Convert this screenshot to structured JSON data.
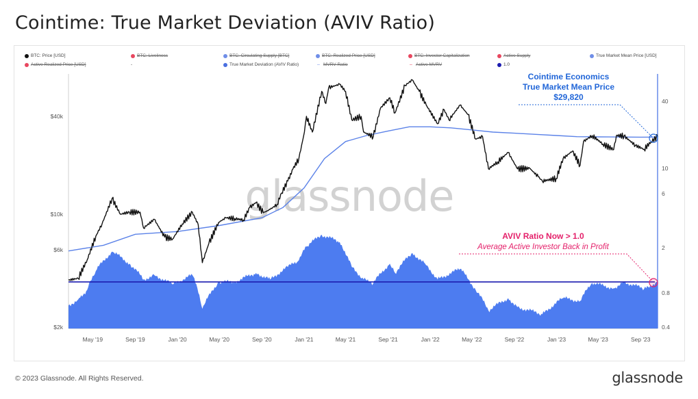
{
  "title": "Cointime: True Market Deviation (AVIV Ratio)",
  "legend": [
    {
      "label": "BTC: Price [USD]",
      "color": "#111111",
      "struck": false,
      "marker": "dot"
    },
    {
      "label": "BTC: Liveliness",
      "color": "#e8475f",
      "struck": true,
      "marker": "dot"
    },
    {
      "label": "BTC: Circulating Supply [BTC]",
      "color": "#6f8ee8",
      "struck": true,
      "marker": "dot"
    },
    {
      "label": "BTC: Realized Price [USD]",
      "color": "#6f8ee8",
      "struck": true,
      "marker": "dot"
    },
    {
      "label": "BTC: Investor Capitalization",
      "color": "#e8475f",
      "struck": true,
      "marker": "dot"
    },
    {
      "label": "Active Supply",
      "color": "#e8475f",
      "struck": true,
      "marker": "dot"
    },
    {
      "label": "True Market Mean Price [USD]",
      "color": "#6f8ee8",
      "struck": false,
      "marker": "dot"
    },
    {
      "label": "Active Realized Price [USD]",
      "color": "#e8475f",
      "struck": true,
      "marker": "dot"
    },
    {
      "label": "-",
      "color": "#888888",
      "struck": false,
      "marker": "none"
    },
    {
      "label": "True Market Deviation (AVIV Ratio)",
      "color": "#4a6fe0",
      "struck": false,
      "marker": "dot"
    },
    {
      "label": "MVRV Ratio",
      "color": "#6f8ee8",
      "struck": true,
      "marker": "dash"
    },
    {
      "label": "Active MVRV",
      "color": "#e8475f",
      "struck": true,
      "marker": "dash"
    },
    {
      "label": "1.0",
      "color": "#1c1cb0",
      "struck": false,
      "marker": "dot"
    }
  ],
  "watermark": "glassnode",
  "annotations": {
    "mean_price": {
      "line1": "Cointime Economics",
      "line2": "True Market Mean Price",
      "line3": "$29,820",
      "color": "#2166d8"
    },
    "aviv": {
      "line1": "AVIV Ratio Now > 1.0",
      "line2": "Average Active Investor Back in Profit",
      "color": "#e4206a"
    }
  },
  "footer": {
    "copyright": "© 2023 Glassnode. All Rights Reserved.",
    "logo": "glassnode"
  },
  "colors": {
    "price": "#111111",
    "mean_price": "#5b82e8",
    "aviv_fill": "#4d7cf0",
    "one_line": "#1c1cb0",
    "axis_text": "#555555"
  },
  "chart_data": {
    "type": "line",
    "title": "Cointime: True Market Deviation (AVIV Ratio)",
    "x_ticks": [
      "May '19",
      "Sep '19",
      "Jan '20",
      "May '20",
      "Sep '20",
      "Jan '21",
      "May '21",
      "Sep '21",
      "Jan '22",
      "May '22",
      "Sep '22",
      "Jan '23",
      "May '23",
      "Sep '23"
    ],
    "x_range": [
      "2019-02-20",
      "2023-10-20"
    ],
    "left_axis": {
      "label": "",
      "scale": "log",
      "ticks": [
        "$2k",
        "$6k",
        "$10k",
        "$40k"
      ],
      "tick_values": [
        2000,
        6000,
        10000,
        40000
      ],
      "range": [
        2000,
        80000
      ]
    },
    "right_axis": {
      "label": "",
      "scale": "log",
      "ticks": [
        "0.4",
        "0.8",
        "2",
        "6",
        "10",
        "40"
      ],
      "tick_values": [
        0.4,
        0.8,
        2,
        6,
        10,
        40
      ]
    },
    "series": [
      {
        "name": "BTC: Price [USD]",
        "axis": "left",
        "x": [
          "2019-02-20",
          "2019-03-20",
          "2019-04-15",
          "2019-05-10",
          "2019-05-28",
          "2019-06-26",
          "2019-07-20",
          "2019-08-15",
          "2019-09-15",
          "2019-09-25",
          "2019-10-26",
          "2019-11-25",
          "2019-12-18",
          "2020-01-15",
          "2020-02-13",
          "2020-03-01",
          "2020-03-13",
          "2020-04-01",
          "2020-04-29",
          "2020-05-20",
          "2020-06-15",
          "2020-07-10",
          "2020-07-28",
          "2020-08-15",
          "2020-09-05",
          "2020-09-25",
          "2020-10-15",
          "2020-10-28",
          "2020-11-15",
          "2020-11-30",
          "2020-12-17",
          "2021-01-02",
          "2021-01-08",
          "2021-01-25",
          "2021-02-21",
          "2021-03-05",
          "2021-03-13",
          "2021-04-14",
          "2021-05-01",
          "2021-05-19",
          "2021-06-15",
          "2021-06-22",
          "2021-07-20",
          "2021-08-10",
          "2021-09-06",
          "2021-09-21",
          "2021-10-20",
          "2021-11-10",
          "2021-11-30",
          "2021-12-20",
          "2022-01-22",
          "2022-02-10",
          "2022-02-24",
          "2022-03-28",
          "2022-04-20",
          "2022-05-12",
          "2022-06-01",
          "2022-06-18",
          "2022-07-15",
          "2022-08-14",
          "2022-09-10",
          "2022-10-15",
          "2022-11-09",
          "2022-11-21",
          "2022-12-31",
          "2023-01-20",
          "2023-02-16",
          "2023-03-10",
          "2023-03-20",
          "2023-04-14",
          "2023-05-15",
          "2023-06-15",
          "2023-06-23",
          "2023-07-15",
          "2023-08-17",
          "2023-09-11",
          "2023-10-01",
          "2023-10-20"
        ],
        "y": [
          3900,
          4000,
          5200,
          7300,
          8700,
          12500,
          10000,
          10300,
          10300,
          8200,
          9300,
          7200,
          7000,
          8700,
          10300,
          8600,
          5000,
          6600,
          8900,
          9500,
          9400,
          9200,
          11000,
          11800,
          10200,
          10700,
          11500,
          13500,
          16000,
          19000,
          22000,
          32000,
          40000,
          32000,
          57000,
          48000,
          60000,
          63000,
          57000,
          38000,
          40000,
          32000,
          30000,
          45000,
          52000,
          42000,
          62000,
          67000,
          57000,
          47000,
          36000,
          44000,
          38000,
          47000,
          41000,
          29000,
          30000,
          19000,
          21000,
          24000,
          19000,
          19200,
          17000,
          16000,
          16600,
          22000,
          24500,
          20000,
          28000,
          30500,
          27000,
          25000,
          30500,
          30300,
          26500,
          25100,
          27900,
          30000
        ]
      },
      {
        "name": "True Market Mean Price [USD]",
        "axis": "left",
        "x": [
          "2019-02-20",
          "2019-06-01",
          "2019-09-01",
          "2020-01-01",
          "2020-05-01",
          "2020-09-01",
          "2020-11-01",
          "2021-01-01",
          "2021-03-01",
          "2021-05-01",
          "2021-07-01",
          "2021-09-01",
          "2021-11-01",
          "2022-01-01",
          "2022-03-01",
          "2022-05-01",
          "2022-07-01",
          "2022-09-01",
          "2022-11-01",
          "2023-01-01",
          "2023-03-01",
          "2023-05-01",
          "2023-07-01",
          "2023-09-01",
          "2023-10-20"
        ],
        "y": [
          5900,
          6400,
          7500,
          7800,
          8500,
          9500,
          11000,
          14500,
          22000,
          28000,
          30500,
          32500,
          34500,
          34500,
          34000,
          33000,
          32000,
          31500,
          31000,
          30500,
          30000,
          29900,
          29850,
          29800,
          29820
        ]
      },
      {
        "name": "True Market Deviation (AVIV Ratio)",
        "axis": "right",
        "x": [
          "2019-02-20",
          "2019-03-20",
          "2019-04-15",
          "2019-05-10",
          "2019-06-26",
          "2019-08-15",
          "2019-09-25",
          "2019-10-26",
          "2019-12-18",
          "2020-02-13",
          "2020-03-13",
          "2020-04-29",
          "2020-06-15",
          "2020-08-15",
          "2020-09-25",
          "2020-11-15",
          "2020-12-17",
          "2021-01-08",
          "2021-02-21",
          "2021-04-14",
          "2021-05-19",
          "2021-06-22",
          "2021-07-20",
          "2021-09-06",
          "2021-09-21",
          "2021-11-10",
          "2021-12-20",
          "2022-01-22",
          "2022-03-28",
          "2022-05-12",
          "2022-06-18",
          "2022-08-14",
          "2022-09-10",
          "2022-11-21",
          "2023-01-20",
          "2023-03-10",
          "2023-04-14",
          "2023-06-15",
          "2023-07-15",
          "2023-09-11",
          "2023-10-20"
        ],
        "y": [
          0.62,
          0.7,
          0.85,
          1.25,
          1.85,
          1.45,
          1.05,
          1.15,
          0.95,
          1.15,
          0.58,
          1.0,
          1.0,
          1.2,
          1.05,
          1.35,
          1.55,
          2.05,
          2.6,
          2.25,
          1.35,
          1.05,
          0.97,
          1.45,
          1.2,
          1.8,
          1.4,
          1.05,
          1.3,
          0.85,
          0.56,
          0.72,
          0.6,
          0.52,
          0.72,
          0.68,
          0.98,
          0.88,
          1.0,
          0.87,
          1.0
        ]
      }
    ],
    "reference_line": {
      "name": "1.0",
      "axis": "right",
      "value": 1.0
    },
    "legend_position": "top",
    "grid": false
  }
}
